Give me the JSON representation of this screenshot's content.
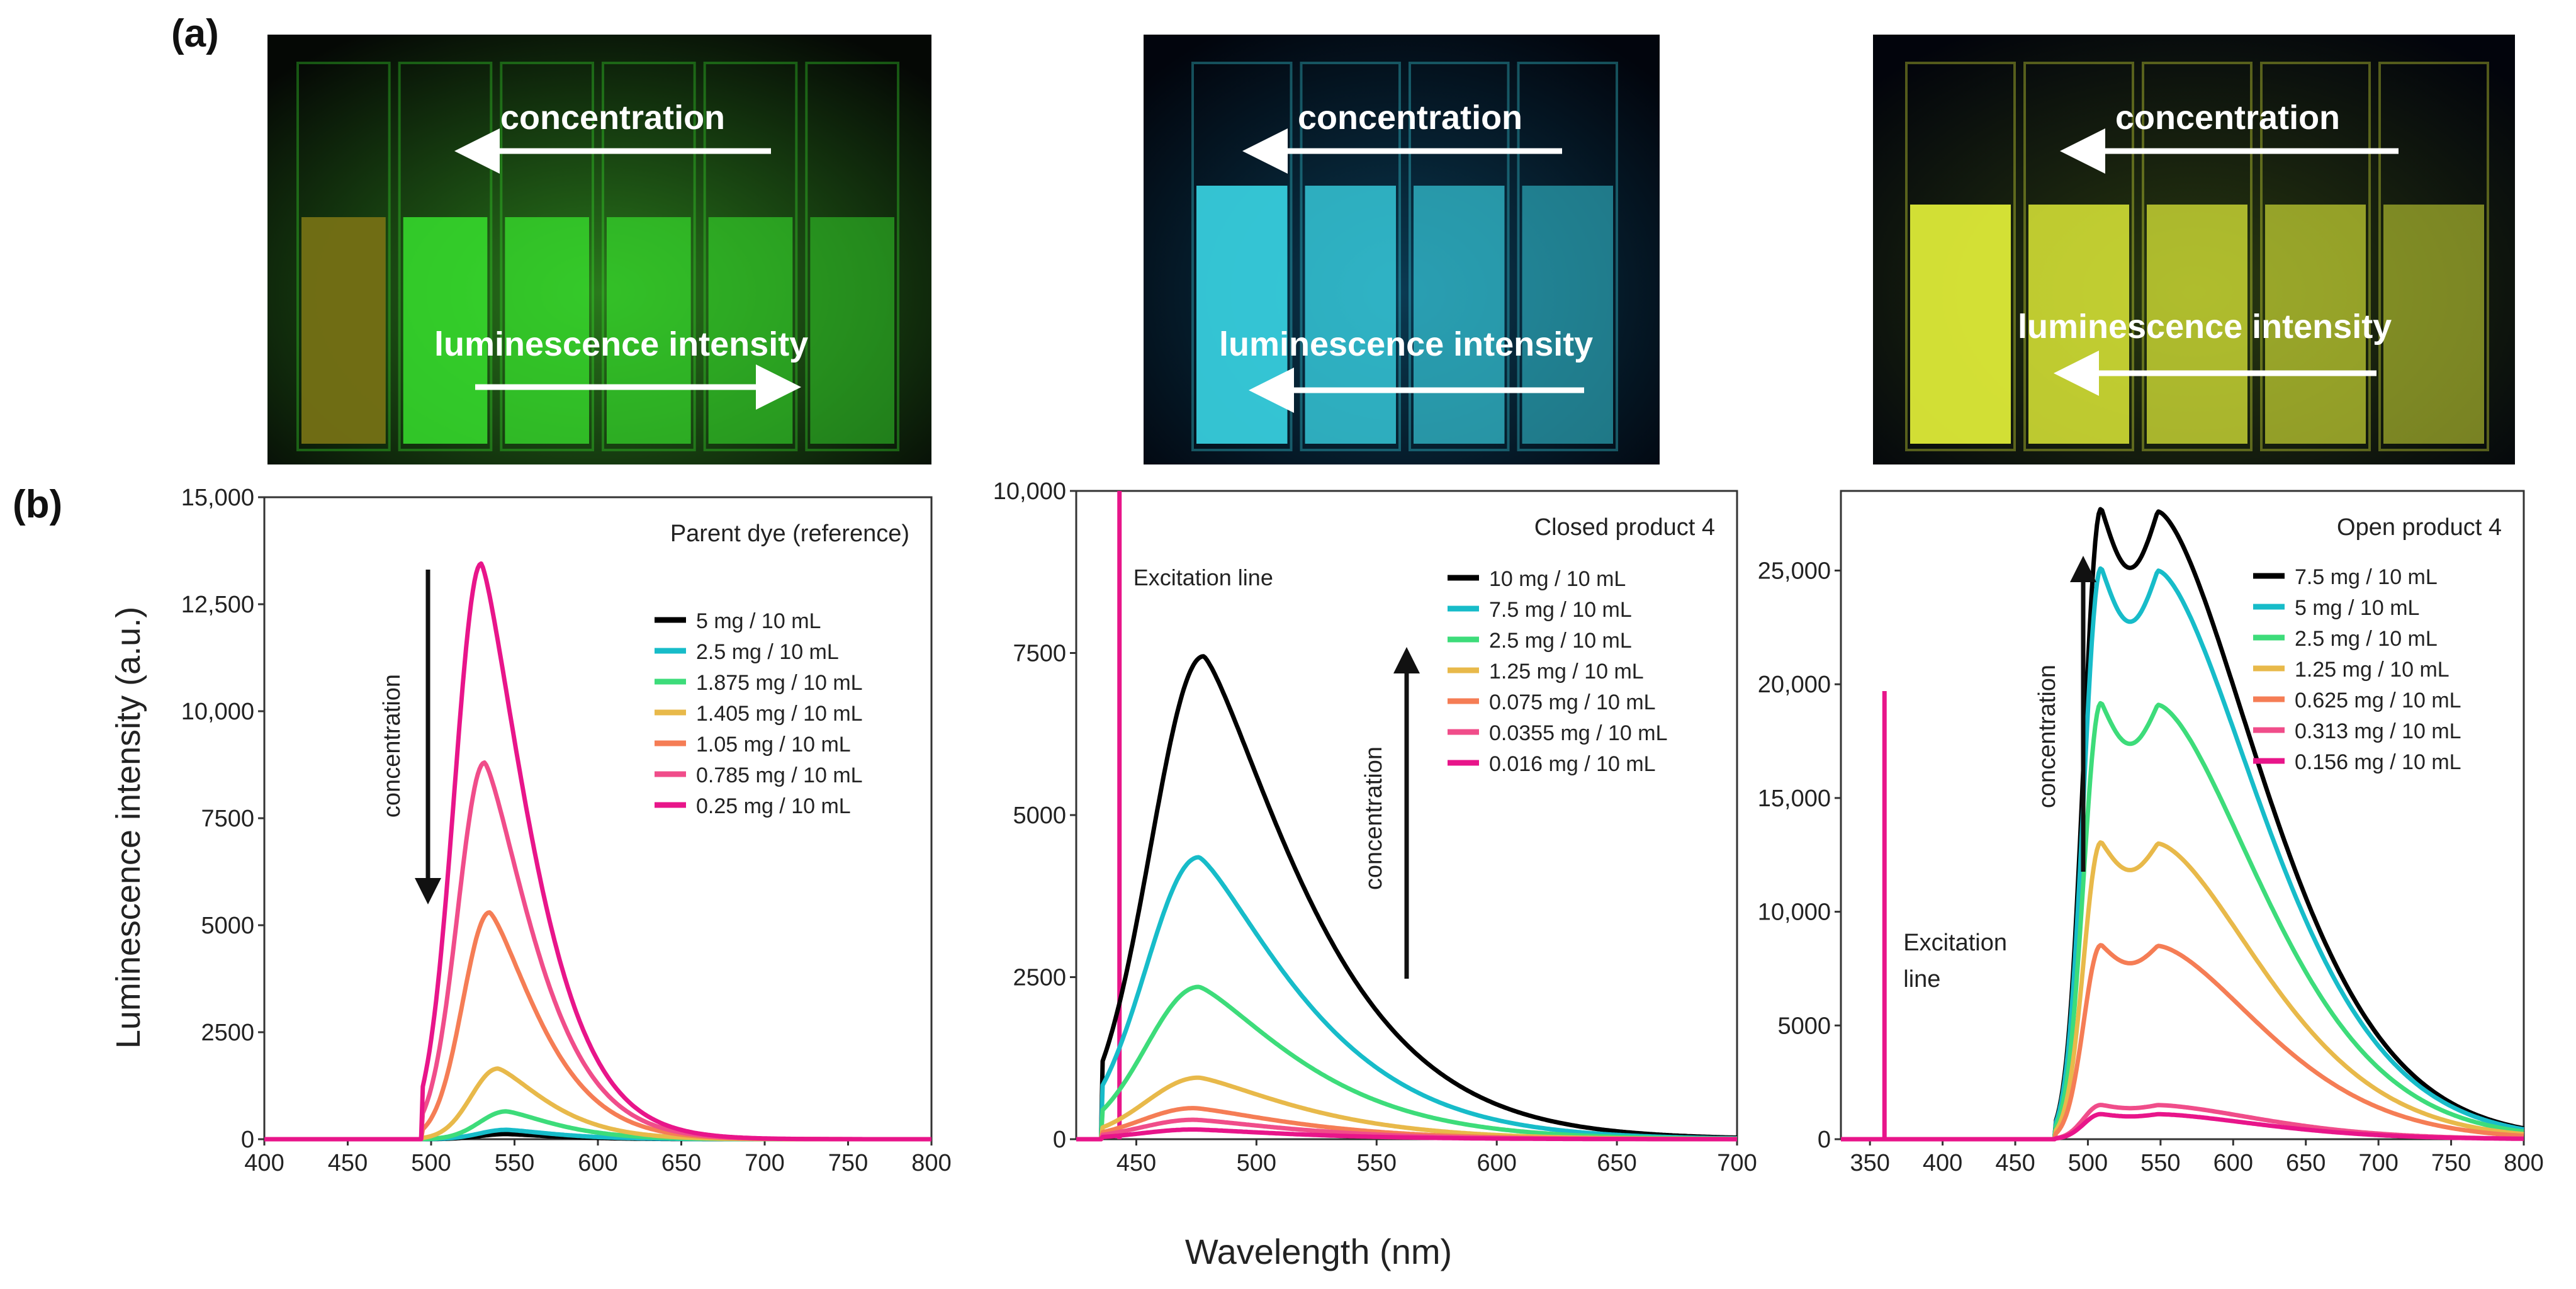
{
  "figure": {
    "panel_a_label": "(a)",
    "panel_b_label": "(b)",
    "shared_ylabel": "Luminescence intensity (a.u.)",
    "shared_xlabel": "Wavelength (nm)"
  },
  "photos": [
    {
      "arrow_top_label": "concentration",
      "arrow_bottom_label": "luminescence intensity",
      "top_arrow_direction": "left",
      "bottom_arrow_direction": "right",
      "cuvette_count": 6,
      "glow_color": "#39e62e",
      "background": "#050805"
    },
    {
      "arrow_top_label": "concentration",
      "arrow_bottom_label": "luminescence intensity",
      "top_arrow_direction": "left",
      "bottom_arrow_direction": "left",
      "cuvette_count": 4,
      "glow_color": "#3ad6e6",
      "background": "#02050d"
    },
    {
      "arrow_top_label": "concentration",
      "arrow_bottom_label": "luminescence intensity",
      "top_arrow_direction": "left",
      "bottom_arrow_direction": "left",
      "cuvette_count": 5,
      "glow_color": "#e8f53a",
      "background": "#02040c"
    }
  ],
  "chart_data": [
    {
      "type": "line",
      "title": "Parent dye (reference)",
      "xlabel": "Wavelength (nm)",
      "ylabel": "Luminescence intensity (a.u.)",
      "xlim": [
        400,
        800
      ],
      "ylim": [
        0,
        15000
      ],
      "xticks": [
        400,
        450,
        500,
        550,
        600,
        650,
        700,
        750,
        800
      ],
      "yticks": [
        0,
        2500,
        5000,
        7500,
        10000,
        12500,
        15000
      ],
      "ytick_labels": [
        "0",
        "2500",
        "5000",
        "7500",
        "10,000",
        "12,500",
        "15,000"
      ],
      "annotation": "concentration",
      "annotation_arrow": "down",
      "series": [
        {
          "name": "5 mg / 10 mL",
          "color": "#000000",
          "peak_x": 545,
          "peak_y": 120
        },
        {
          "name": "2.5 mg / 10 mL",
          "color": "#17bcc9",
          "peak_x": 545,
          "peak_y": 220
        },
        {
          "name": "1.875 mg / 10 mL",
          "color": "#3ddc7a",
          "peak_x": 545,
          "peak_y": 650
        },
        {
          "name": "1.405 mg / 10 mL",
          "color": "#e8b94a",
          "peak_x": 540,
          "peak_y": 1650
        },
        {
          "name": "1.05 mg / 10 mL",
          "color": "#f57d55",
          "peak_x": 535,
          "peak_y": 5300
        },
        {
          "name": "0.785 mg / 10 mL",
          "color": "#f04d8a",
          "peak_x": 532,
          "peak_y": 8800
        },
        {
          "name": "0.25 mg / 10 mL",
          "color": "#e8158a",
          "peak_x": 530,
          "peak_y": 13450
        }
      ]
    },
    {
      "type": "line",
      "title": "Closed product 4",
      "xlabel": "Wavelength (nm)",
      "ylabel": "",
      "xlim": [
        425,
        700
      ],
      "ylim": [
        0,
        10000
      ],
      "xticks": [
        450,
        500,
        550,
        600,
        650,
        700
      ],
      "yticks": [
        0,
        2500,
        5000,
        7500,
        10000
      ],
      "ytick_labels": [
        "0",
        "2500",
        "5000",
        "7500",
        "10,000"
      ],
      "annotation": "concentration",
      "annotation_arrow": "up",
      "excitation_label": "Excitation line",
      "excitation_x": 443,
      "series": [
        {
          "name": "10 mg / 10 mL",
          "color": "#000000",
          "peak_x": 478,
          "peak_y": 7450
        },
        {
          "name": "7.5 mg / 10 mL",
          "color": "#17bcc9",
          "peak_x": 476,
          "peak_y": 4350
        },
        {
          "name": "2.5 mg / 10 mL",
          "color": "#3ddc7a",
          "peak_x": 476,
          "peak_y": 2350
        },
        {
          "name": "1.25 mg / 10 mL",
          "color": "#e8b94a",
          "peak_x": 476,
          "peak_y": 950
        },
        {
          "name": "0.075 mg / 10 mL",
          "color": "#f57d55",
          "peak_x": 474,
          "peak_y": 480
        },
        {
          "name": "0.0355 mg / 10 mL",
          "color": "#f04d8a",
          "peak_x": 474,
          "peak_y": 300
        },
        {
          "name": "0.016 mg / 10 mL",
          "color": "#e8158a",
          "peak_x": 474,
          "peak_y": 150
        }
      ]
    },
    {
      "type": "line",
      "title": "Open product 4",
      "xlabel": "Wavelength (nm)",
      "ylabel": "",
      "xlim": [
        330,
        800
      ],
      "ylim": [
        0,
        28500
      ],
      "xticks": [
        350,
        400,
        450,
        500,
        550,
        600,
        650,
        700,
        750,
        800
      ],
      "yticks": [
        0,
        5000,
        10000,
        15000,
        20000,
        25000
      ],
      "ytick_labels": [
        "0",
        "5000",
        "10,000",
        "15,000",
        "20,000",
        "25,000"
      ],
      "annotation": "concentration",
      "annotation_arrow": "up",
      "excitation_label_lines": [
        "Excitation",
        "line"
      ],
      "excitation_x": 360,
      "excitation_y": 19700,
      "series": [
        {
          "name": "7.5 mg / 10 mL",
          "color": "#000000",
          "peak_x": 540,
          "peak_y": 27600
        },
        {
          "name": "5 mg / 10 mL",
          "color": "#17bcc9",
          "peak_x": 525,
          "peak_y": 25000
        },
        {
          "name": "2.5 mg / 10 mL",
          "color": "#3ddc7a",
          "peak_x": 520,
          "peak_y": 19100
        },
        {
          "name": "1.25 mg / 10 mL",
          "color": "#e8b94a",
          "peak_x": 515,
          "peak_y": 13000
        },
        {
          "name": "0.625 mg / 10 mL",
          "color": "#f57d55",
          "peak_x": 515,
          "peak_y": 8500
        },
        {
          "name": "0.313 mg / 10 mL",
          "color": "#f04d8a",
          "peak_x": 520,
          "peak_y": 1500
        },
        {
          "name": "0.156 mg / 10 mL",
          "color": "#e8158a",
          "peak_x": 520,
          "peak_y": 1100
        }
      ]
    }
  ]
}
